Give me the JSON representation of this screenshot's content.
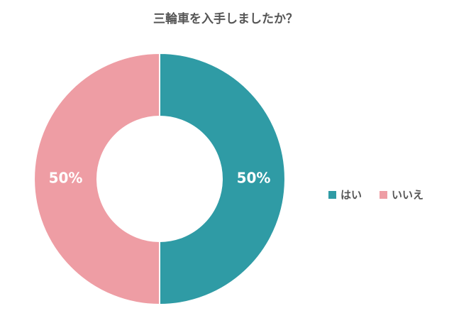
{
  "chart_data": {
    "type": "donut",
    "title": "三輪車を入手しましたか？",
    "categories": [
      "はい",
      "いいえ"
    ],
    "values": [
      50,
      50
    ],
    "value_labels": [
      "50%",
      "50%"
    ],
    "colors": [
      "#2f9ba5",
      "#ee9da4"
    ],
    "legend": "right"
  }
}
